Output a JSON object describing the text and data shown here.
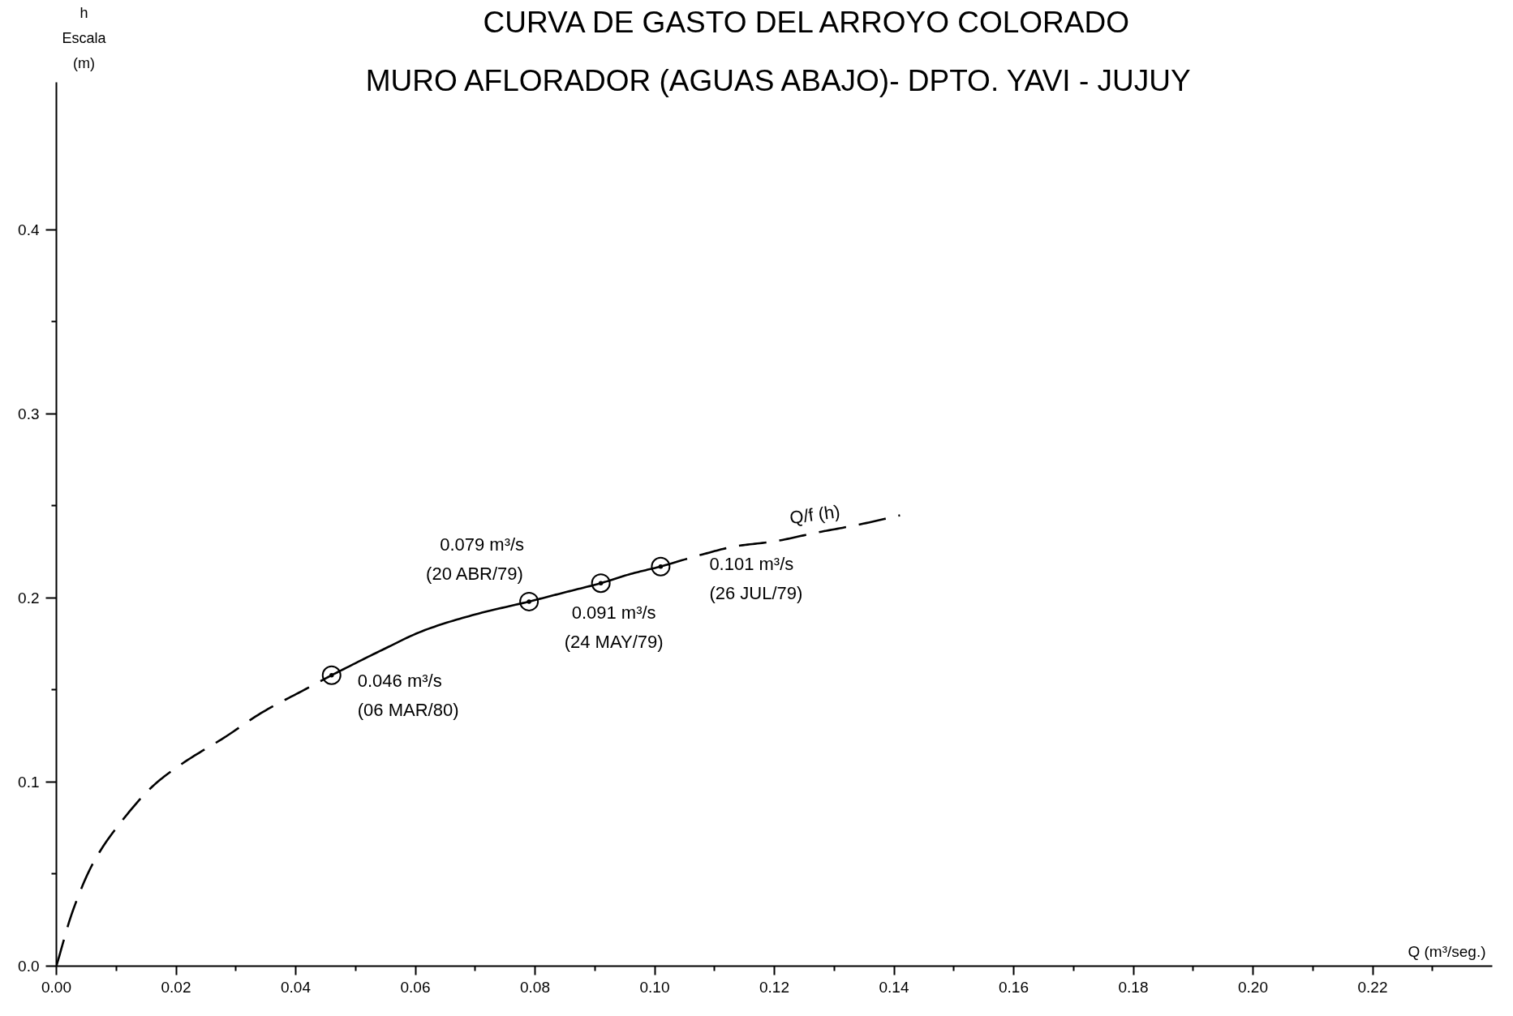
{
  "chart_data": {
    "type": "line",
    "title": "CURVA DE GASTO DEL ARROYO COLORADO",
    "subtitle": "MURO AFLORADOR (AGUAS ABAJO)- DPTO. YAVI - JUJUY",
    "xlabel": "Q (m³/seg.)",
    "ylabel": "h\nEscala\n(m)",
    "xlim": [
      0,
      0.24
    ],
    "ylim": [
      0,
      0.48
    ],
    "xticks": [
      {
        "value": 0,
        "label": "0.00"
      },
      {
        "value": 0.01,
        "label": null
      },
      0.02,
      {
        "value": 0.03,
        "label": null
      },
      0.04,
      {
        "value": 0.05,
        "label": null
      },
      0.06,
      {
        "value": 0.07,
        "label": null
      },
      0.08,
      {
        "value": 0.09,
        "label": null
      },
      {
        "value": 0.1,
        "label": "0.10"
      },
      {
        "value": 0.11,
        "label": null
      },
      0.12,
      {
        "value": 0.13,
        "label": null
      },
      0.14,
      {
        "value": 0.15,
        "label": null
      },
      0.16,
      {
        "value": 0.17,
        "label": null
      },
      0.18,
      {
        "value": 0.19,
        "label": null
      },
      {
        "value": 0.2,
        "label": "0.20"
      },
      {
        "value": 0.21,
        "label": null
      },
      0.22,
      {
        "value": 0.23,
        "label": null
      }
    ],
    "yticks": [
      {
        "value": 0,
        "label": "0.0"
      },
      {
        "value": 0.05,
        "label": null
      },
      0.1,
      {
        "value": 0.15,
        "label": null
      },
      0.2,
      {
        "value": 0.25,
        "label": null
      },
      0.3,
      {
        "value": 0.35,
        "label": null
      },
      0.4
    ],
    "grid": false,
    "series": [
      {
        "line_style": "dashed",
        "color": "#000000",
        "x": [
          0,
          0.0027,
          0.0062,
          0.0113,
          0.0164,
          0.0215,
          0.028,
          0.0345,
          0.0414,
          0.046
        ],
        "values": [
          0,
          0.0296,
          0.0563,
          0.0803,
          0.0986,
          0.111,
          0.124,
          0.138,
          0.15,
          0.158
        ]
      },
      {
        "line_style": "solid",
        "color": "#000000",
        "x": [
          0.046,
          0.054,
          0.0616,
          0.07,
          0.079,
          0.085,
          0.091,
          0.096,
          0.101
        ],
        "values": [
          0.158,
          0.171,
          0.1825,
          0.191,
          0.198,
          0.203,
          0.208,
          0.213,
          0.217
        ]
      },
      {
        "line_style": "dashed",
        "color": "#000000",
        "x": [
          0.101,
          0.108,
          0.1135,
          0.12,
          0.127,
          0.134,
          0.141
        ],
        "values": [
          0.217,
          0.2236,
          0.228,
          0.2307,
          0.2354,
          0.2397,
          0.2448
        ]
      },
      {
        "type": "scatter",
        "marker": "circle",
        "color": "#000000",
        "x": [
          0.046,
          0.079,
          0.091,
          0.101
        ],
        "values": [
          0.158,
          0.198,
          0.208,
          0.217
        ]
      }
    ],
    "annotations": [
      {
        "text": "0.046 m³/s\n(06 MAR/80)",
        "x": 0.046,
        "y": 0.158
      },
      {
        "text": "0.079 m³/s\n(20 ABR/79)",
        "x": 0.079,
        "y": 0.198
      },
      {
        "text": "0.091 m³/s\n(24 MAY/79)",
        "x": 0.091,
        "y": 0.208
      },
      {
        "text": "0.101 m³/s\n(26 JUL/79)",
        "x": 0.101,
        "y": 0.217
      },
      {
        "text": "Q/f (h)",
        "x": 0.127,
        "y": 0.2354
      }
    ]
  }
}
